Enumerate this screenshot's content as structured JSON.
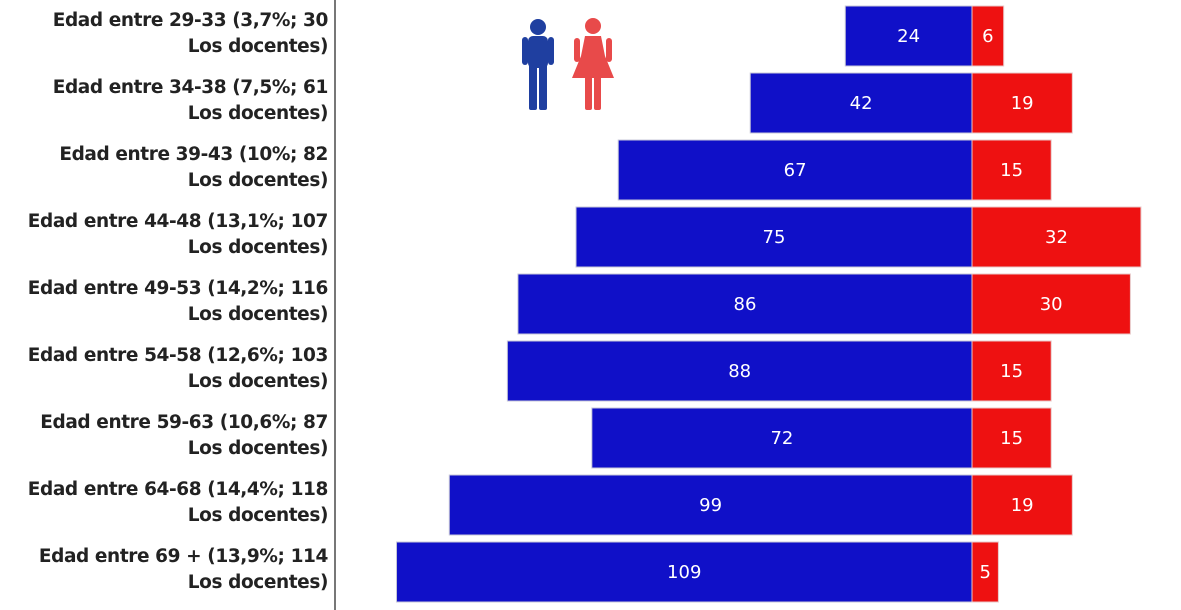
{
  "chart_data": {
    "type": "bar",
    "orientation": "horizontal-diverging",
    "categories": [
      [
        "Edad entre 29-33 (3,7%; 30",
        "Los docentes)"
      ],
      [
        "Edad entre 34-38 (7,5%; 61",
        "Los docentes)"
      ],
      [
        "Edad entre 39-43 (10%; 82",
        "Los docentes)"
      ],
      [
        "Edad entre 44-48 (13,1%; 107",
        "Los docentes)"
      ],
      [
        "Edad entre 49-53 (14,2%; 116",
        "Los docentes)"
      ],
      [
        "Edad entre 54-58 (12,6%; 103",
        "Los docentes)"
      ],
      [
        "Edad entre 59-63 (10,6%; 87",
        "Los docentes)"
      ],
      [
        "Edad entre 64-68 (14,4%; 118",
        "Los docentes)"
      ],
      [
        "Edad entre 69 + (13,9%; 114",
        "Los docentes)"
      ]
    ],
    "series": [
      {
        "values": [
          24,
          42,
          67,
          75,
          86,
          88,
          72,
          99,
          109
        ],
        "value_labels": [
          "24",
          "42",
          "67",
          "75",
          "86",
          "88",
          "72",
          "99",
          "109"
        ],
        "color": "#1010c8"
      },
      {
        "values": [
          6,
          19,
          15,
          32,
          30,
          15,
          15,
          19,
          5
        ],
        "value_labels": [
          "6",
          "19",
          "15",
          "32",
          "30",
          "15",
          "15",
          "19",
          "5"
        ],
        "color": "#ee1111"
      }
    ],
    "legend_icons": [
      "male-figure-icon",
      "female-figure-icon"
    ],
    "legend_placement": "top-left",
    "grid": false
  }
}
